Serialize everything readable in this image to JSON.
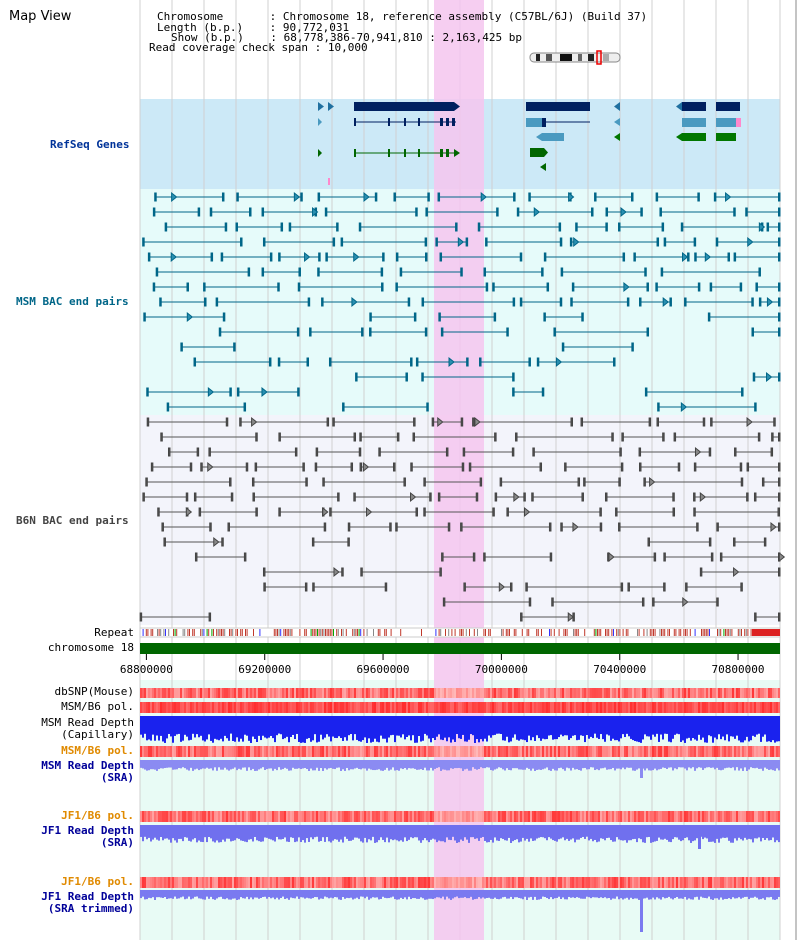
{
  "title": "Map View",
  "info": {
    "rows": [
      {
        "key": "Chromosome",
        "value": "Chromosome 18, reference assembly (C57BL/6J) (Build 37)"
      },
      {
        "key": "Length (b.p.)",
        "value": "90,772,031"
      },
      {
        "key": "Show (b.p.)",
        "value": "68,778,386-70,941,810 : 2,163,425 bp"
      },
      {
        "key": "Read coverage check span",
        "value": "10,000"
      }
    ]
  },
  "tracks": {
    "refseq": {
      "label": "RefSeq Genes",
      "color": "#003399"
    },
    "msm_bac": {
      "label": "MSM BAC end pairs",
      "color": "#006688"
    },
    "b6n_bac": {
      "label": "B6N BAC end pairs",
      "color": "#444444"
    },
    "repeat": {
      "label": "Repeat"
    },
    "chromosome": {
      "label": "chromosome 18",
      "color": "#006600"
    },
    "dbsnp": {
      "label": "dbSNP(Mouse)"
    },
    "msm_b6_pol": {
      "label": "MSM/B6 pol."
    },
    "msm_read_depth_cap": {
      "label1": "MSM Read Depth",
      "label2": "(Capillary)"
    },
    "msm_b6_pol_2": {
      "label": "MSM/B6 pol.",
      "color": "#e08a00"
    },
    "msm_read_depth_sra": {
      "label1": "MSM Read Depth",
      "label2": "(SRA)",
      "color": "#000099"
    },
    "jf1_b6_pol": {
      "label": "JF1/B6 pol.",
      "color": "#e08a00"
    },
    "jf1_read_depth_sra": {
      "label1": "JF1 Read Depth",
      "label2": "(SRA)",
      "color": "#000099"
    },
    "jf1_b6_pol_2": {
      "label": "JF1/B6 pol.",
      "color": "#e08a00"
    },
    "jf1_read_depth_trim": {
      "label1": "JF1 Read Depth",
      "label2": "(SRA trimmed)",
      "color": "#000099"
    }
  },
  "axis": {
    "ticks": [
      "68800000",
      "69200000",
      "69600000",
      "70000000",
      "70400000",
      "70800000"
    ],
    "range_bp": [
      68778386,
      70941810
    ]
  },
  "highlight_color": "#f5c6ee"
}
